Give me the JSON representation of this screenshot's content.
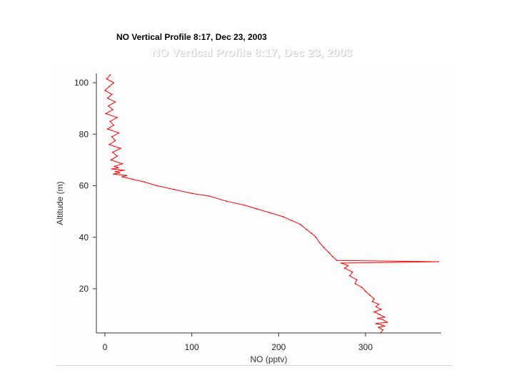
{
  "chart_data": {
    "type": "line",
    "title": "NO Vertical Profile 8:17, Dec 23, 2003",
    "xlabel": "NO (pptv)",
    "ylabel": "Altitude (m)",
    "xlim": [
      -10,
      390
    ],
    "ylim": [
      3,
      105
    ],
    "xticks": [
      0,
      100,
      200,
      300
    ],
    "yticks": [
      20,
      40,
      60,
      80,
      100
    ],
    "grid": false,
    "series_color": "#ff0000",
    "series": [
      {
        "x": [
          6,
          2,
          10,
          5,
          0,
          8,
          3,
          12,
          4,
          9,
          1,
          14,
          6,
          10,
          3,
          16,
          8,
          12,
          5,
          18,
          9,
          14,
          7,
          20,
          11,
          15,
          8,
          22,
          12,
          17,
          10,
          25,
          20,
          32,
          45,
          60,
          80,
          100,
          120,
          140,
          160,
          175,
          190,
          205,
          215,
          225,
          232,
          238,
          243,
          247,
          252,
          258,
          262,
          267,
          384,
          272,
          280,
          276,
          285,
          282,
          290,
          288,
          296,
          300,
          305,
          310,
          308,
          315,
          312,
          318,
          310,
          316,
          322,
          314,
          320,
          325,
          312,
          318,
          322,
          315,
          320,
          318
        ],
        "y": [
          103,
          101.5,
          100,
          98.5,
          97,
          95.5,
          94,
          92.5,
          91,
          89.5,
          88,
          86.5,
          85,
          83.5,
          82,
          80.5,
          79,
          77.5,
          76,
          74.5,
          73,
          71.5,
          70,
          68.5,
          67.5,
          67,
          66.5,
          66,
          65.5,
          65,
          64.5,
          64,
          63.5,
          62.5,
          61.5,
          60,
          58.5,
          57,
          56,
          54,
          52.5,
          51,
          49.5,
          48,
          46.5,
          45,
          43,
          41.5,
          40,
          38,
          36,
          34,
          32.5,
          31,
          30.5,
          30,
          29,
          28,
          26.5,
          25,
          23.5,
          22,
          20.5,
          19,
          17.5,
          16,
          15,
          14,
          13,
          12,
          11,
          10,
          9,
          8.5,
          8,
          7,
          6.5,
          6,
          5.5,
          5,
          4,
          3
        ]
      }
    ]
  }
}
